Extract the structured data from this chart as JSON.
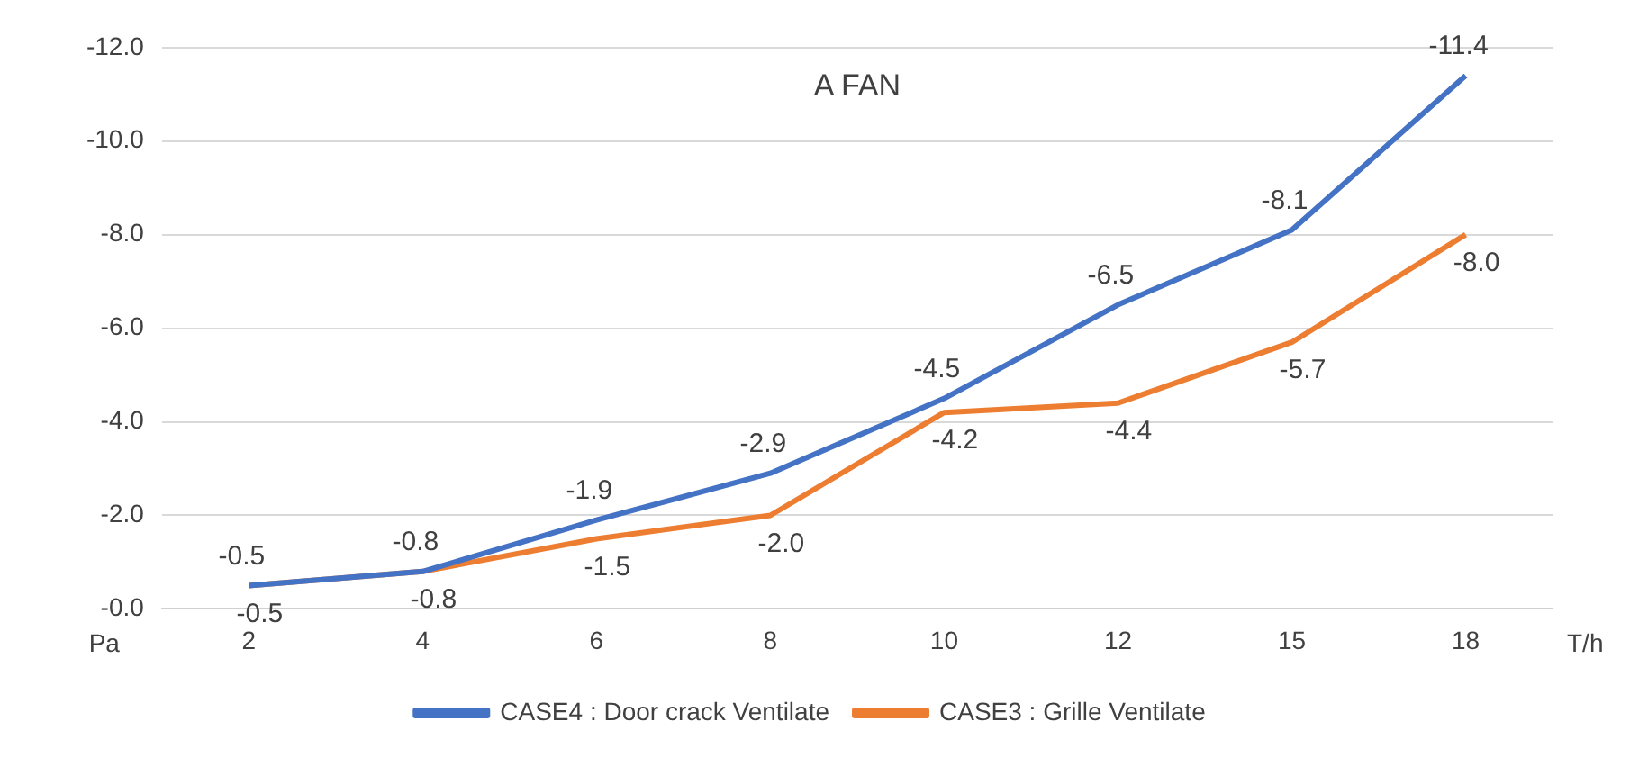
{
  "chart_data": {
    "type": "line",
    "title": "A FAN",
    "xlabel": "T/h",
    "ylabel": "Pa",
    "categories": [
      "2",
      "4",
      "6",
      "8",
      "10",
      "12",
      "15",
      "18"
    ],
    "series": [
      {
        "name": "CASE4 : Door crack Ventilate",
        "color": "#4472c4",
        "values": [
          -0.5,
          -0.8,
          -1.9,
          -2.9,
          -4.5,
          -6.5,
          -8.1,
          -11.4
        ],
        "value_labels": [
          "-0.5",
          "-0.8",
          "-1.9",
          "-2.9",
          "-4.5",
          "-6.5",
          "-8.1",
          "-11.4"
        ]
      },
      {
        "name": "CASE3 : Grille Ventilate",
        "color": "#ed7d31",
        "values": [
          -0.5,
          -0.8,
          -1.5,
          -2.0,
          -4.2,
          -4.4,
          -5.7,
          -8.0
        ],
        "value_labels": [
          "-0.5",
          "-0.8",
          "-1.5",
          "-2.0",
          "-4.2",
          "-4.4",
          "-5.7",
          "-8.0"
        ]
      }
    ],
    "ylim": [
      0,
      -12
    ],
    "yticks": [
      {
        "value": 0,
        "label": "-0.0"
      },
      {
        "value": -2,
        "label": "-2.0"
      },
      {
        "value": -4,
        "label": "-4.0"
      },
      {
        "value": -6,
        "label": "-6.0"
      },
      {
        "value": -8,
        "label": "-8.0"
      },
      {
        "value": -10,
        "label": "-10.0"
      },
      {
        "value": -12,
        "label": "-12.0"
      }
    ],
    "grid": "y",
    "legend": "bottom",
    "marker": "none",
    "line_style": "solid"
  }
}
